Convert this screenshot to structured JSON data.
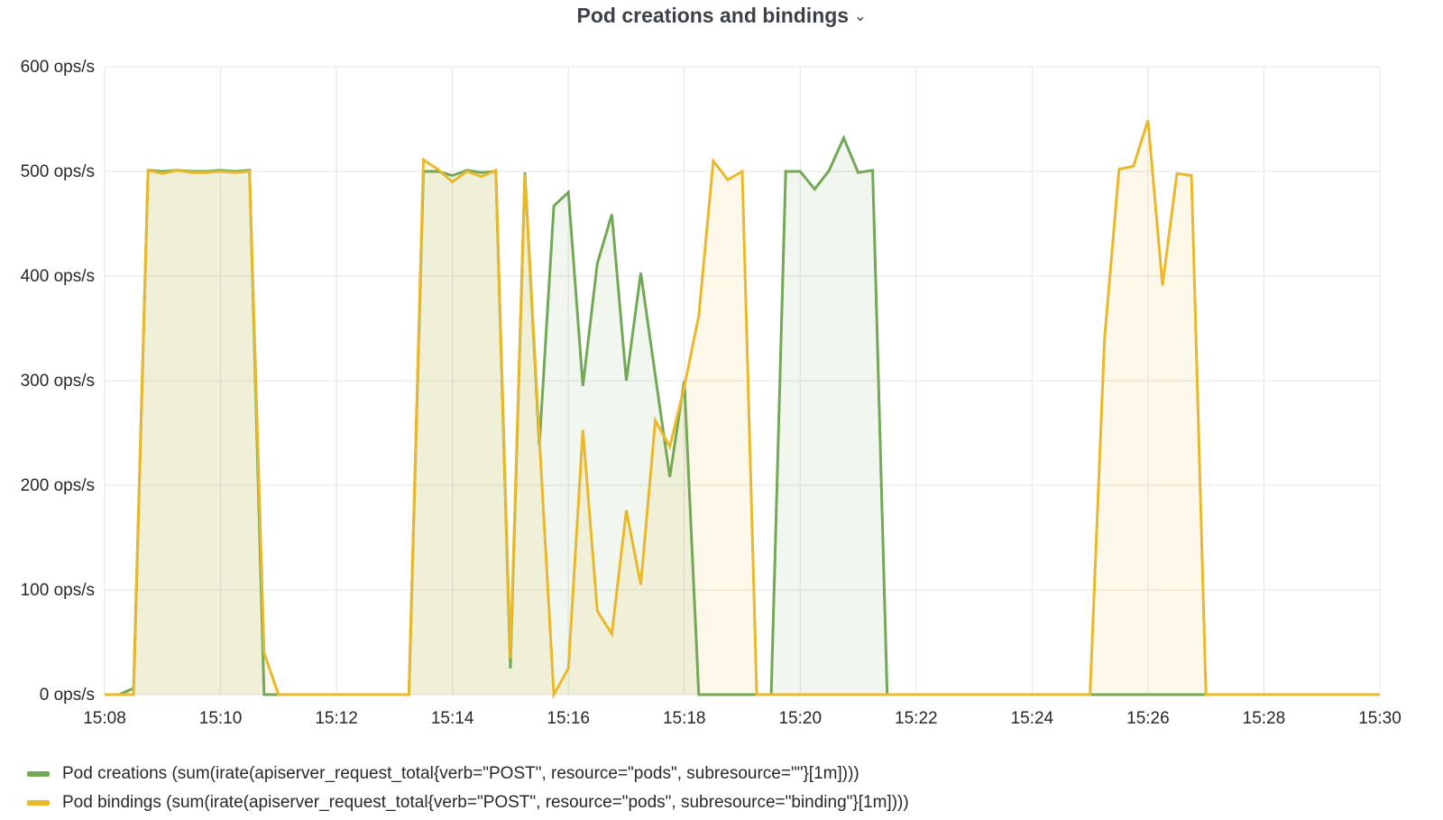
{
  "panel": {
    "title": "Pod creations and bindings"
  },
  "chart_data": {
    "type": "area",
    "title": "Pod creations and bindings",
    "xlabel": "",
    "ylabel": "",
    "x_range_minutes": [
      0,
      22
    ],
    "x_ticks": [
      {
        "t": 0,
        "label": "15:08"
      },
      {
        "t": 2,
        "label": "15:10"
      },
      {
        "t": 4,
        "label": "15:12"
      },
      {
        "t": 6,
        "label": "15:14"
      },
      {
        "t": 8,
        "label": "15:16"
      },
      {
        "t": 10,
        "label": "15:18"
      },
      {
        "t": 12,
        "label": "15:20"
      },
      {
        "t": 14,
        "label": "15:22"
      },
      {
        "t": 16,
        "label": "15:24"
      },
      {
        "t": 18,
        "label": "15:26"
      },
      {
        "t": 20,
        "label": "15:28"
      },
      {
        "t": 22,
        "label": "15:30"
      }
    ],
    "ylim": [
      0,
      600
    ],
    "y_ticks": [
      {
        "v": 0,
        "label": "0 ops/s"
      },
      {
        "v": 100,
        "label": "100 ops/s"
      },
      {
        "v": 200,
        "label": "200 ops/s"
      },
      {
        "v": 300,
        "label": "300 ops/s"
      },
      {
        "v": 400,
        "label": "400 ops/s"
      },
      {
        "v": 500,
        "label": "500 ops/s"
      },
      {
        "v": 600,
        "label": "600 ops/s"
      }
    ],
    "grid": true,
    "legend_position": "bottom-left",
    "series": [
      {
        "name": "Pod creations (sum(irate(apiserver_request_total{verb=\"POST\", resource=\"pods\", subresource=\"\"}[1m])))",
        "color": "#73a857",
        "fill": "rgba(115,168,87,0.10)",
        "t": [
          0,
          0.25,
          0.5,
          0.75,
          1,
          1.25,
          1.5,
          1.75,
          2,
          2.25,
          2.5,
          2.75,
          3,
          3.25,
          3.5,
          3.75,
          4,
          4.25,
          4.5,
          4.75,
          5,
          5.25,
          5.5,
          5.75,
          6,
          6.25,
          6.5,
          6.75,
          7,
          7.25,
          7.5,
          7.75,
          8,
          8.25,
          8.5,
          8.75,
          9,
          9.25,
          9.5,
          9.75,
          10,
          10.25,
          10.5,
          10.75,
          11,
          11.25,
          11.5,
          11.75,
          12,
          12.25,
          12.5,
          12.75,
          13,
          13.25,
          13.5,
          13.75,
          14,
          14.25,
          14.5,
          15,
          15.5,
          16,
          16.5,
          17,
          17.5,
          18,
          18.5,
          19,
          19.5,
          20,
          20.5,
          21,
          21.5,
          22
        ],
        "y": [
          0,
          0,
          6,
          501,
          500,
          501,
          500,
          500,
          501,
          500,
          501,
          0,
          0,
          0,
          0,
          0,
          0,
          0,
          0,
          0,
          0,
          0,
          500,
          500,
          496,
          501,
          499,
          500,
          25,
          499,
          238,
          467,
          480,
          295,
          412,
          459,
          300,
          403,
          305,
          208,
          300,
          0,
          0,
          0,
          0,
          0,
          0,
          500,
          500,
          483,
          501,
          532,
          499,
          501,
          0,
          0,
          0,
          0,
          0,
          0,
          0,
          0,
          0,
          0,
          0,
          0,
          0,
          0,
          0,
          0,
          0,
          0,
          0,
          0
        ]
      },
      {
        "name": "Pod bindings (sum(irate(apiserver_request_total{verb=\"POST\", resource=\"pods\", subresource=\"binding\"}[1m])))",
        "color": "#e9b82b",
        "fill": "rgba(233,184,43,0.10)",
        "t": [
          0,
          0.25,
          0.5,
          0.75,
          1,
          1.25,
          1.5,
          1.75,
          2,
          2.25,
          2.5,
          2.75,
          3,
          3.25,
          3.5,
          3.75,
          4,
          4.25,
          4.5,
          4.75,
          5,
          5.25,
          5.5,
          5.75,
          6,
          6.25,
          6.5,
          6.75,
          7,
          7.25,
          7.5,
          7.75,
          8,
          8.25,
          8.5,
          8.75,
          9,
          9.25,
          9.5,
          9.75,
          10,
          10.25,
          10.5,
          10.75,
          11,
          11.25,
          11.5,
          11.75,
          12,
          12.5,
          13,
          13.5,
          14,
          14.5,
          15,
          15.5,
          16,
          16.5,
          17,
          17.25,
          17.5,
          17.75,
          18,
          18.25,
          18.5,
          18.75,
          19,
          19.5,
          20,
          20.5,
          21,
          21.5,
          22
        ],
        "y": [
          0,
          0,
          0,
          501,
          498,
          501,
          499,
          499,
          500,
          499,
          500,
          40,
          0,
          0,
          0,
          0,
          0,
          0,
          0,
          0,
          0,
          0,
          511,
          502,
          490,
          500,
          495,
          501,
          35,
          497,
          246,
          0,
          25,
          253,
          80,
          58,
          176,
          105,
          262,
          237,
          294,
          362,
          510,
          492,
          500,
          0,
          0,
          0,
          0,
          0,
          0,
          0,
          0,
          0,
          0,
          0,
          0,
          0,
          0,
          340,
          502,
          505,
          549,
          391,
          498,
          496,
          0,
          0,
          0,
          0,
          0,
          0,
          0
        ]
      }
    ]
  }
}
